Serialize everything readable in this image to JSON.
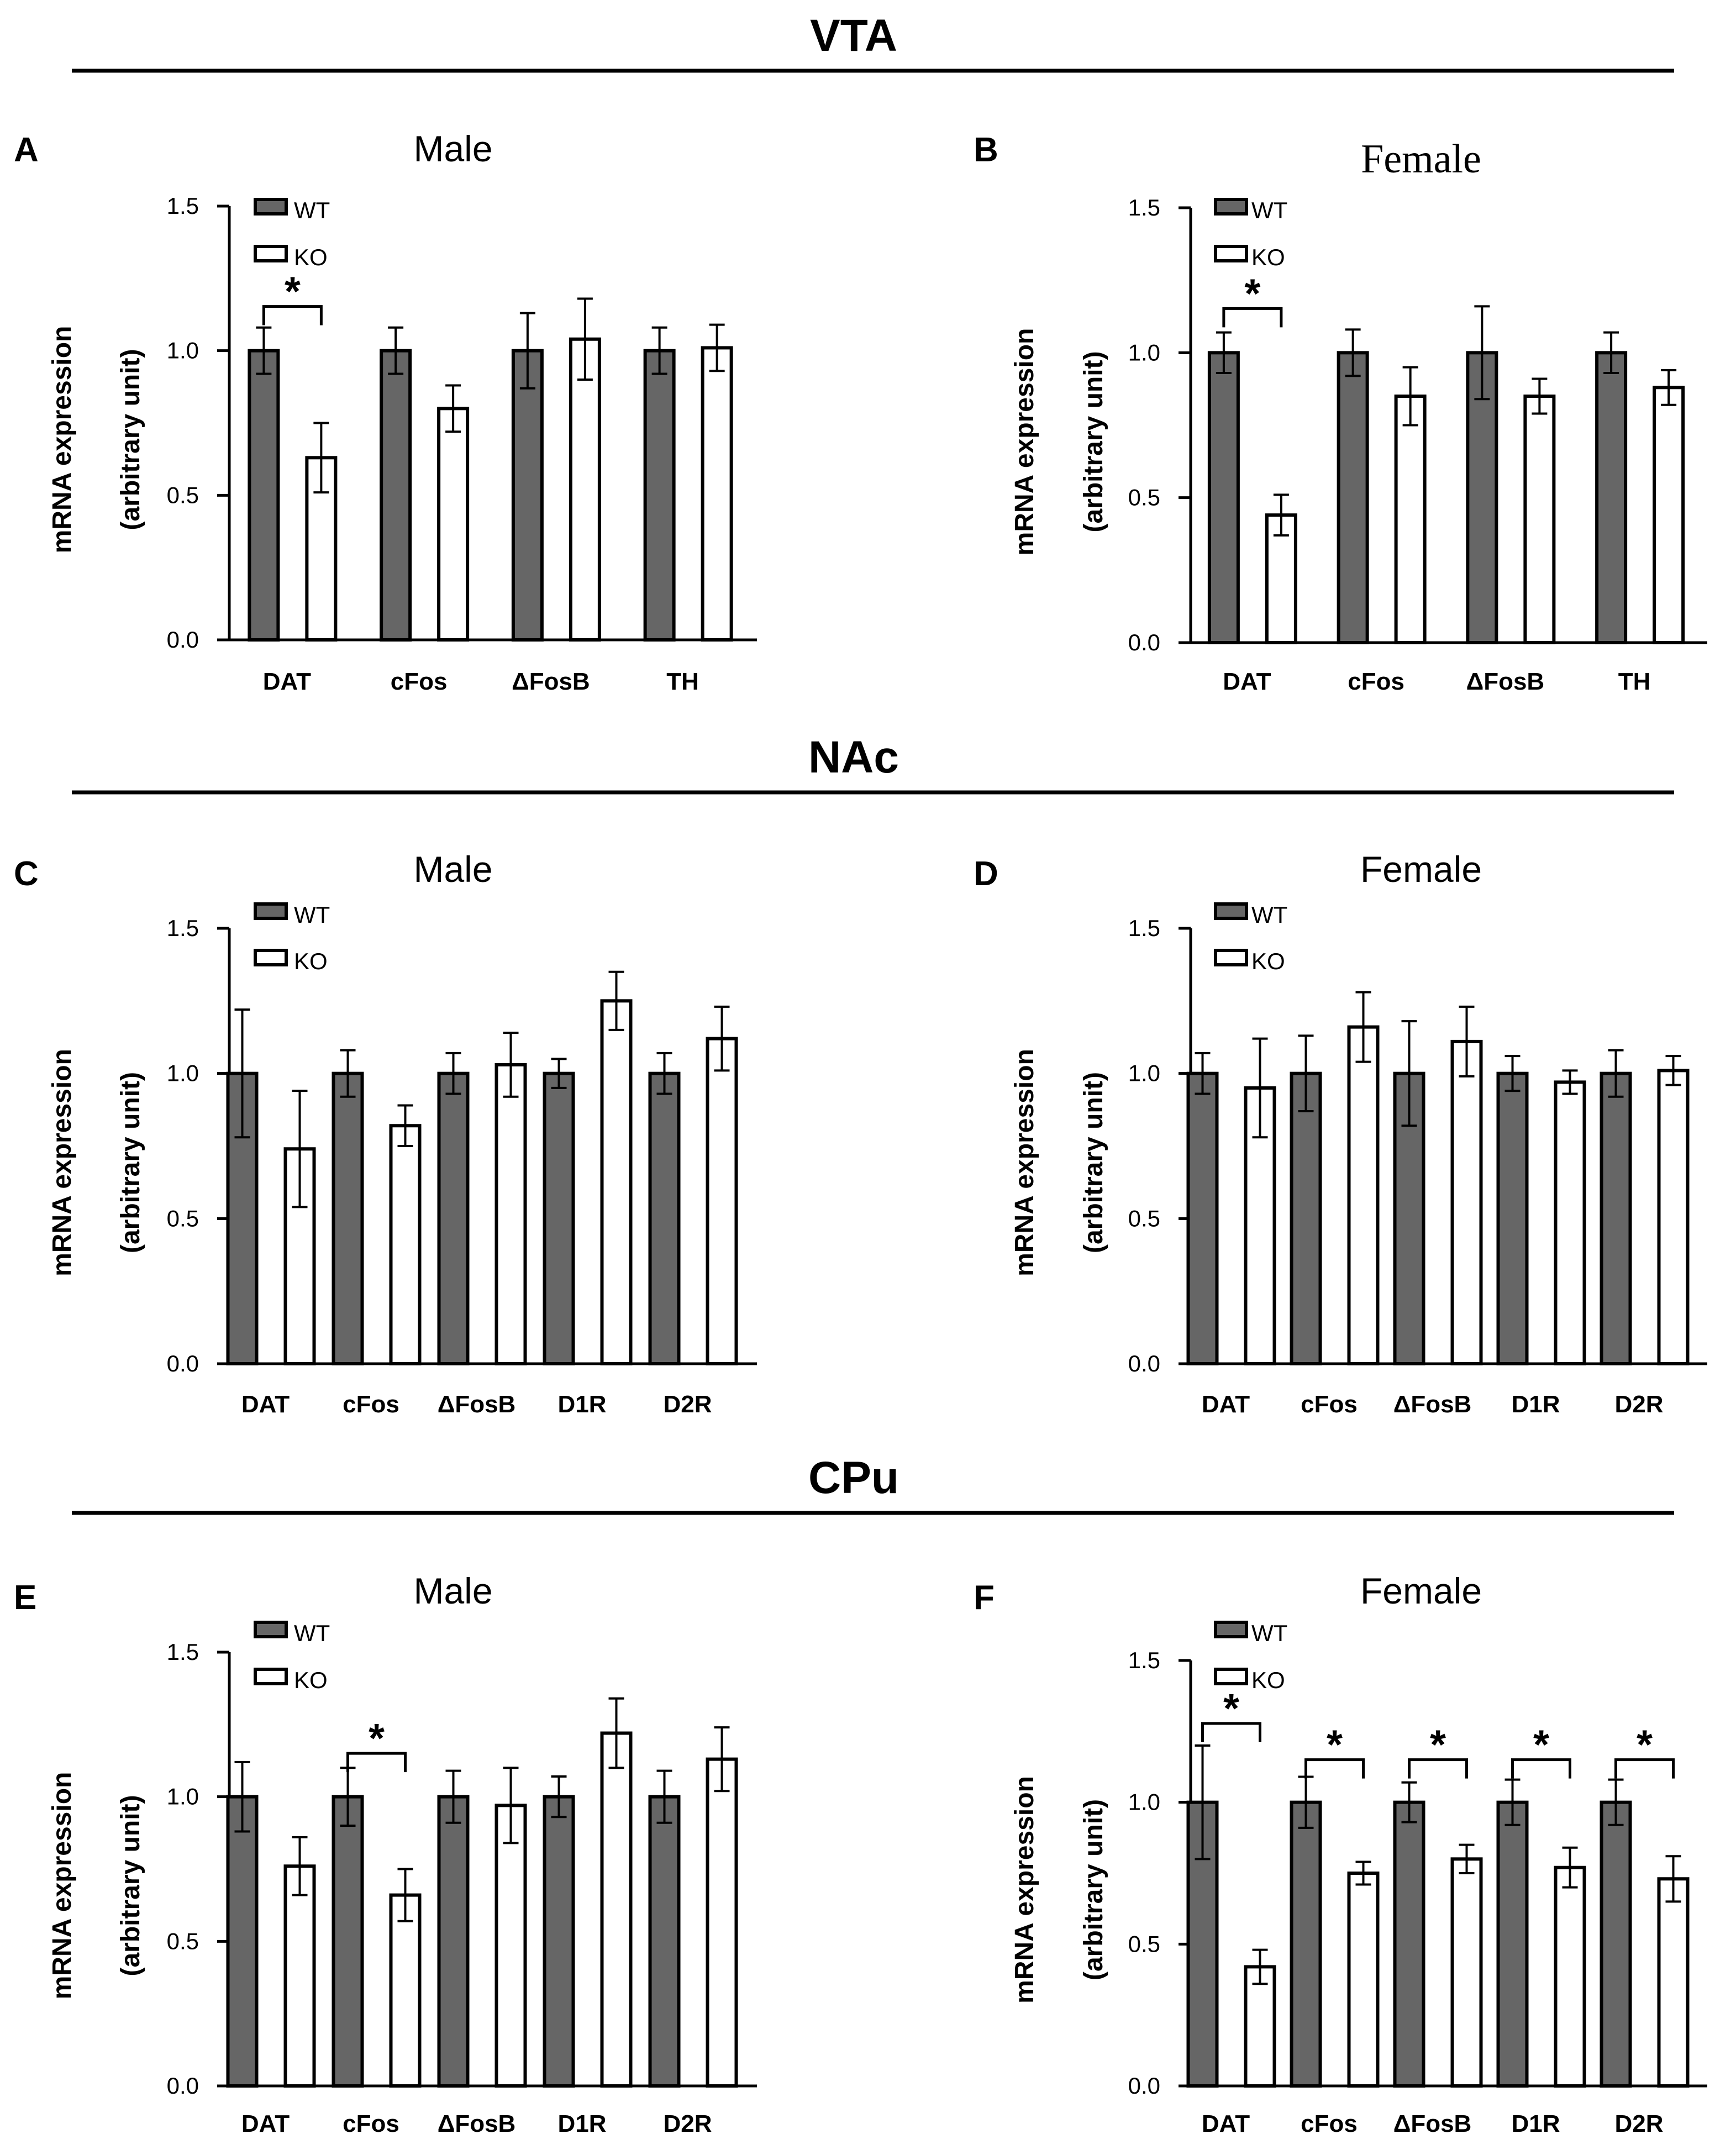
{
  "sections": [
    {
      "title": "VTA"
    },
    {
      "title": "NAc"
    },
    {
      "title": "CPu"
    }
  ],
  "colors": {
    "wt_fill": "#666666",
    "ko_fill": "#ffffff",
    "stroke": "#000000"
  },
  "chart_data": [
    {
      "panel": "A",
      "section": "VTA",
      "title": "Male",
      "type": "bar",
      "ylabel_line1": "mRNA expression",
      "ylabel_line2": "(arbitrary unit)",
      "ylim": [
        0,
        1.5
      ],
      "yticks": [
        "0.0",
        "0.5",
        "1.0",
        "1.5"
      ],
      "categories": [
        "DAT",
        "cFos",
        "ΔFosB",
        "TH"
      ],
      "series": [
        {
          "name": "WT",
          "values": [
            1.0,
            1.0,
            1.0,
            1.0
          ],
          "errors": [
            0.08,
            0.08,
            0.13,
            0.08
          ]
        },
        {
          "name": "KO",
          "values": [
            0.63,
            0.8,
            1.04,
            1.01
          ],
          "errors": [
            0.12,
            0.08,
            0.14,
            0.08
          ]
        }
      ],
      "significance": [
        {
          "category_index": 0,
          "label": "*"
        }
      ]
    },
    {
      "panel": "B",
      "section": "VTA",
      "title": "Female",
      "type": "bar",
      "title_style": "serif",
      "ylabel_line1": "mRNA expression",
      "ylabel_line2": "(arbitrary unit)",
      "ylim": [
        0,
        1.5
      ],
      "yticks": [
        "0.0",
        "0.5",
        "1.0",
        "1.5"
      ],
      "categories": [
        "DAT",
        "cFos",
        "ΔFosB",
        "TH"
      ],
      "series": [
        {
          "name": "WT",
          "values": [
            1.0,
            1.0,
            1.0,
            1.0
          ],
          "errors": [
            0.07,
            0.08,
            0.16,
            0.07
          ]
        },
        {
          "name": "KO",
          "values": [
            0.44,
            0.85,
            0.85,
            0.88
          ],
          "errors": [
            0.07,
            0.1,
            0.06,
            0.06
          ]
        }
      ],
      "significance": [
        {
          "category_index": 0,
          "label": "*"
        }
      ]
    },
    {
      "panel": "C",
      "section": "NAc",
      "title": "Male",
      "type": "bar",
      "ylabel_line1": "mRNA expression",
      "ylabel_line2": "(arbitrary unit)",
      "ylim": [
        0,
        1.5
      ],
      "yticks": [
        "0.0",
        "0.5",
        "1.0",
        "1.5"
      ],
      "categories": [
        "DAT",
        "cFos",
        "ΔFosB",
        "D1R",
        "D2R"
      ],
      "series": [
        {
          "name": "WT",
          "values": [
            1.0,
            1.0,
            1.0,
            1.0,
            1.0
          ],
          "errors": [
            0.22,
            0.08,
            0.07,
            0.05,
            0.07
          ]
        },
        {
          "name": "KO",
          "values": [
            0.74,
            0.82,
            1.03,
            1.25,
            1.12
          ],
          "errors": [
            0.2,
            0.07,
            0.11,
            0.1,
            0.11
          ]
        }
      ],
      "significance": []
    },
    {
      "panel": "D",
      "section": "NAc",
      "title": "Female",
      "type": "bar",
      "ylabel_line1": "mRNA expression",
      "ylabel_line2": "(arbitrary unit)",
      "ylim": [
        0,
        1.5
      ],
      "yticks": [
        "0.0",
        "0.5",
        "1.0",
        "1.5"
      ],
      "categories": [
        "DAT",
        "cFos",
        "ΔFosB",
        "D1R",
        "D2R"
      ],
      "series": [
        {
          "name": "WT",
          "values": [
            1.0,
            1.0,
            1.0,
            1.0,
            1.0
          ],
          "errors": [
            0.07,
            0.13,
            0.18,
            0.06,
            0.08
          ]
        },
        {
          "name": "KO",
          "values": [
            0.95,
            1.16,
            1.11,
            0.97,
            1.01
          ],
          "errors": [
            0.17,
            0.12,
            0.12,
            0.04,
            0.05
          ]
        }
      ],
      "significance": []
    },
    {
      "panel": "E",
      "section": "CPu",
      "title": "Male",
      "type": "bar",
      "ylabel_line1": "mRNA expression",
      "ylabel_line2": "(arbitrary unit)",
      "ylim": [
        0,
        1.5
      ],
      "yticks": [
        "0.0",
        "0.5",
        "1.0",
        "1.5"
      ],
      "categories": [
        "DAT",
        "cFos",
        "ΔFosB",
        "D1R",
        "D2R"
      ],
      "series": [
        {
          "name": "WT",
          "values": [
            1.0,
            1.0,
            1.0,
            1.0,
            1.0
          ],
          "errors": [
            0.12,
            0.1,
            0.09,
            0.07,
            0.09
          ]
        },
        {
          "name": "KO",
          "values": [
            0.76,
            0.66,
            0.97,
            1.22,
            1.13
          ],
          "errors": [
            0.1,
            0.09,
            0.13,
            0.12,
            0.11
          ]
        }
      ],
      "significance": [
        {
          "category_index": 1,
          "label": "*"
        }
      ]
    },
    {
      "panel": "F",
      "section": "CPu",
      "title": "Female",
      "type": "bar",
      "ylabel_line1": "mRNA expression",
      "ylabel_line2": "(arbitrary unit)",
      "ylim": [
        0,
        1.5
      ],
      "yticks": [
        "0.0",
        "0.5",
        "1.0",
        "1.5"
      ],
      "categories": [
        "DAT",
        "cFos",
        "ΔFosB",
        "D1R",
        "D2R"
      ],
      "series": [
        {
          "name": "WT",
          "values": [
            1.0,
            1.0,
            1.0,
            1.0,
            1.0
          ],
          "errors": [
            0.2,
            0.09,
            0.07,
            0.08,
            0.08
          ]
        },
        {
          "name": "KO",
          "values": [
            0.42,
            0.75,
            0.8,
            0.77,
            0.73
          ],
          "errors": [
            0.06,
            0.04,
            0.05,
            0.07,
            0.08
          ]
        }
      ],
      "significance": [
        {
          "category_index": 0,
          "label": "*"
        },
        {
          "category_index": 1,
          "label": "*"
        },
        {
          "category_index": 2,
          "label": "*"
        },
        {
          "category_index": 3,
          "label": "*"
        },
        {
          "category_index": 4,
          "label": "*"
        }
      ]
    }
  ]
}
